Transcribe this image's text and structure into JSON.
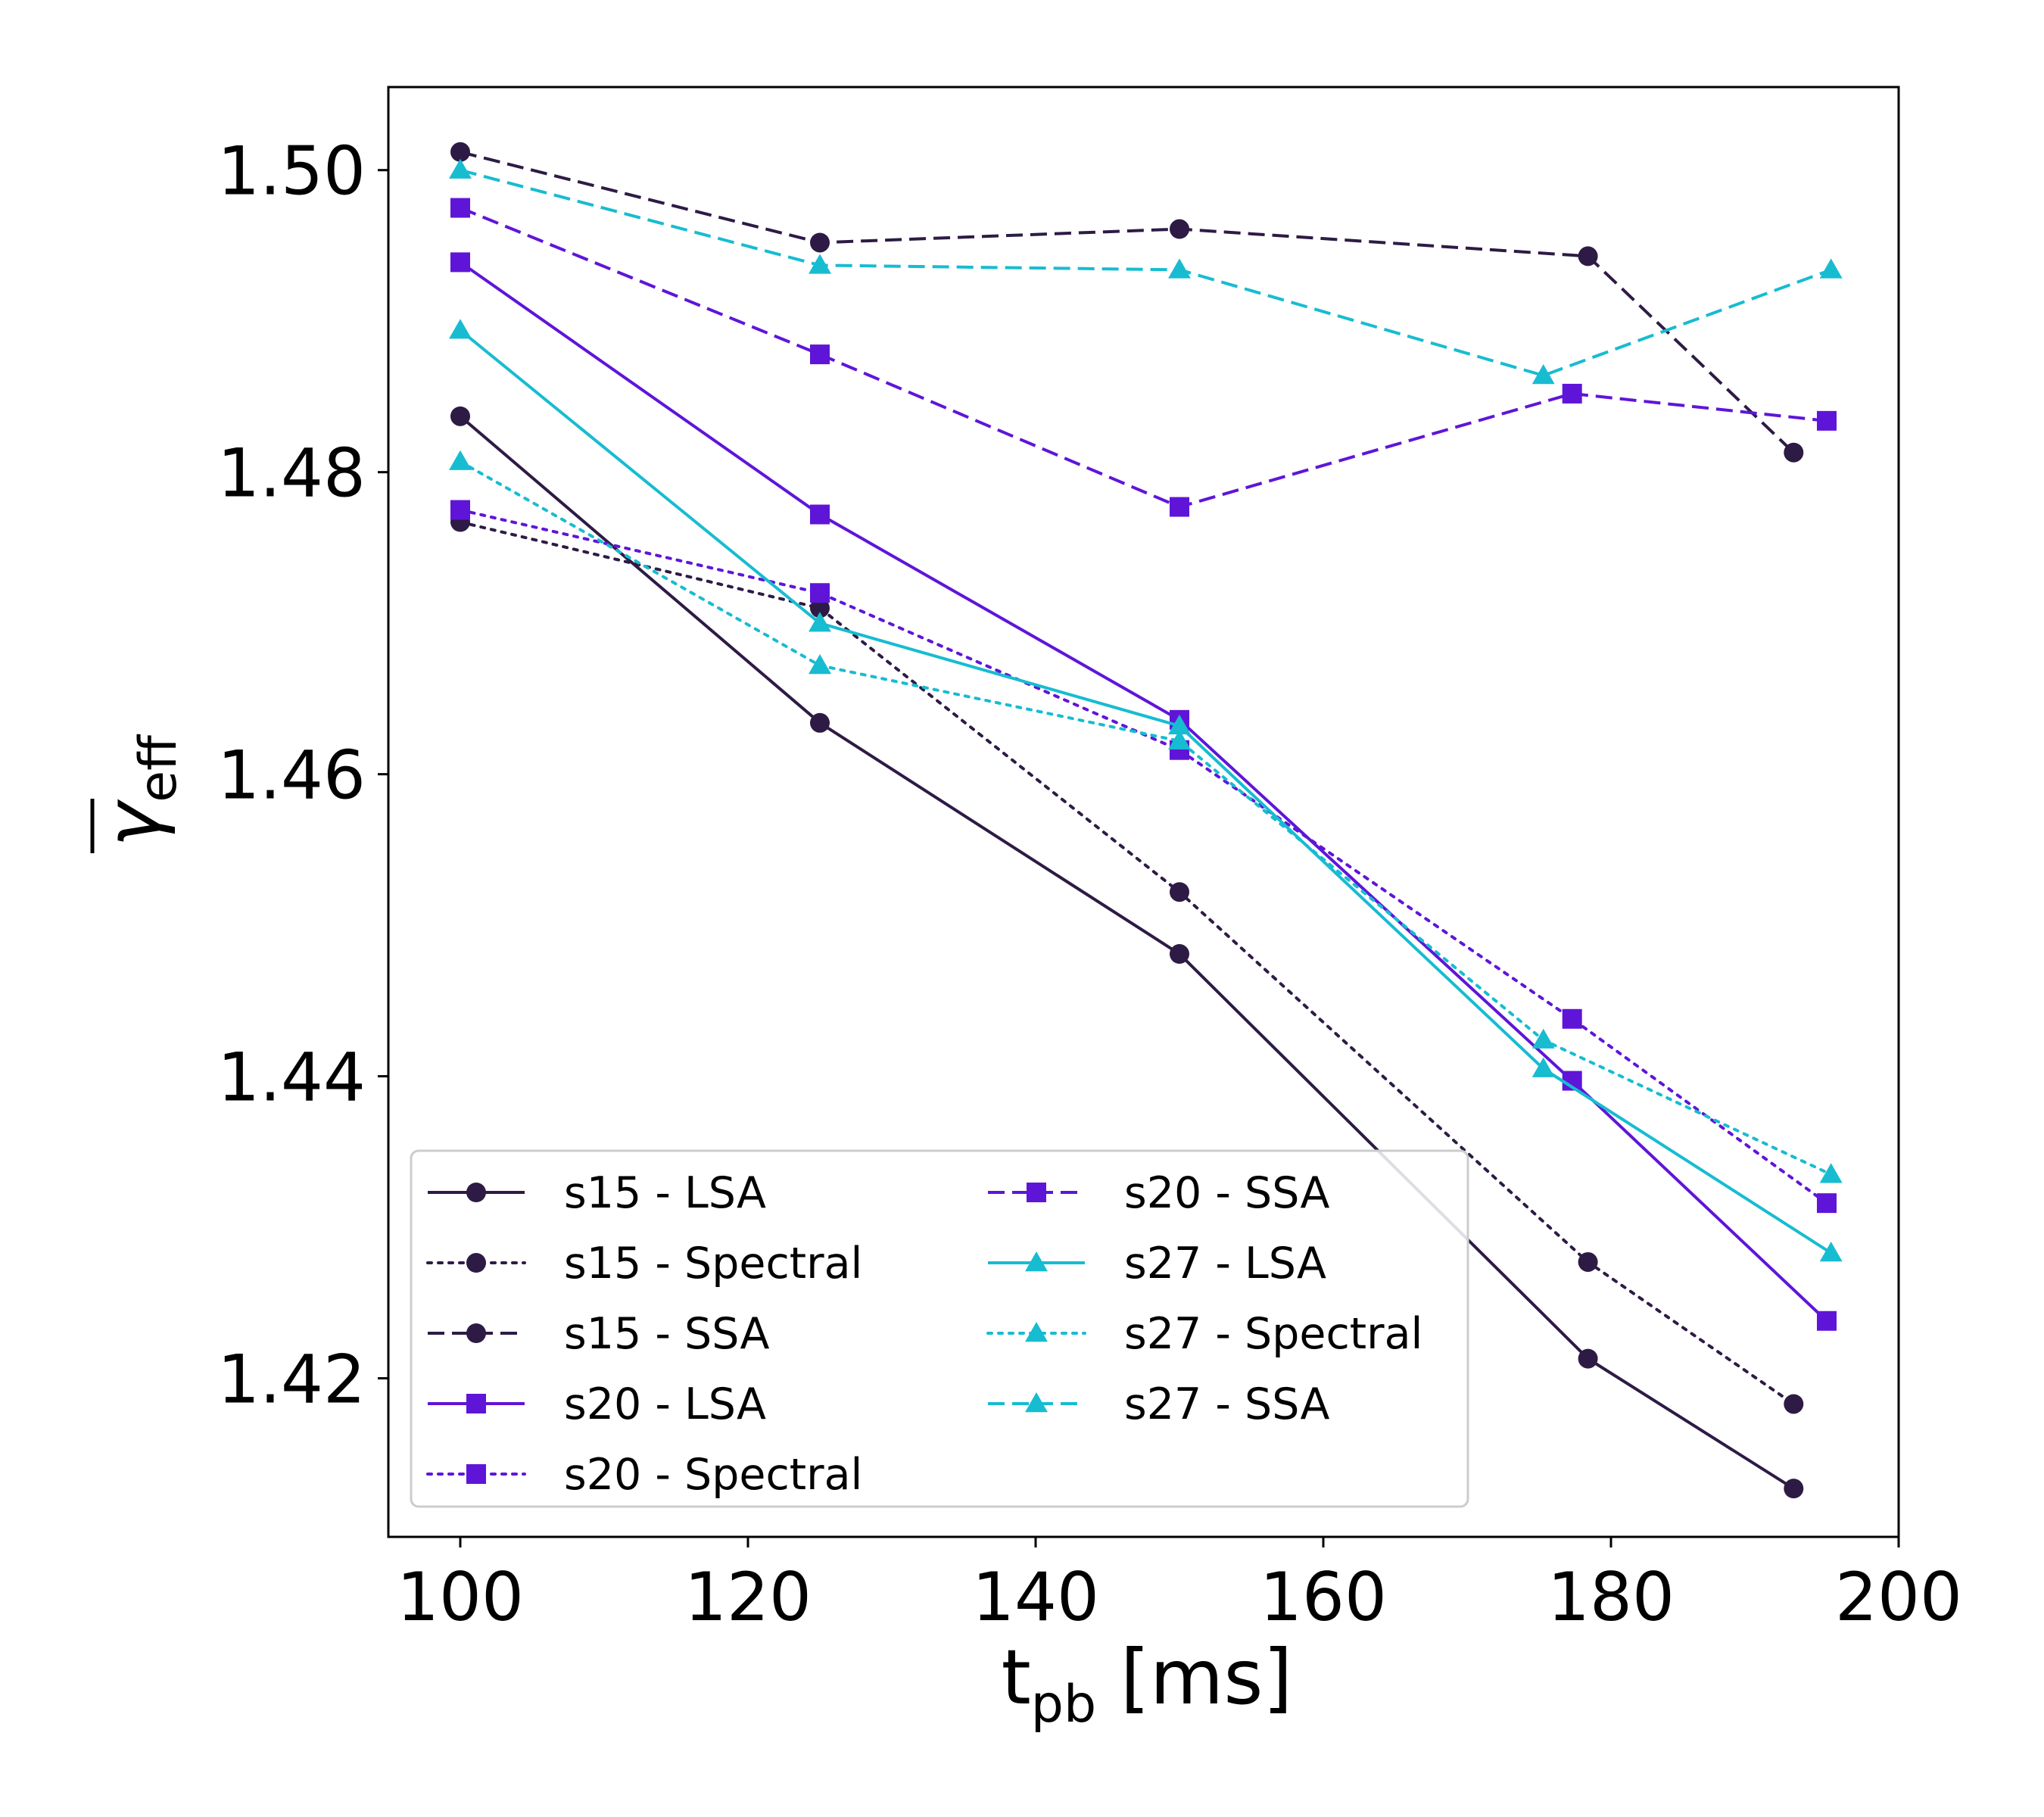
{
  "chart_data": {
    "type": "line",
    "xlabel": "t",
    "xlabel_sub": "pb",
    "xlabel_unit": " [ms]",
    "ylabel": "γ",
    "ylabel_sub": "eff",
    "xlim": [
      95,
      200
    ],
    "ylim": [
      1.4095,
      1.5055
    ],
    "xticks": [
      100,
      120,
      140,
      160,
      180,
      200
    ],
    "xtick_labels": [
      "100",
      "120",
      "140",
      "160",
      "180",
      "200"
    ],
    "yticks": [
      1.42,
      1.44,
      1.46,
      1.48,
      1.5
    ],
    "ytick_labels": [
      "1.42",
      "1.44",
      "1.46",
      "1.48",
      "1.50"
    ],
    "grid": false,
    "legend_placement": "lower-left",
    "series": [
      {
        "name": "s15 - LSA",
        "style": "solid",
        "marker": "circle",
        "color": "#2d1b45",
        "x": [
          100,
          125,
          150,
          178.4,
          192.7
        ],
        "y": [
          1.4837,
          1.4634,
          1.4481,
          1.4213,
          1.4127
        ]
      },
      {
        "name": "s15 - Spectral",
        "style": "dotted",
        "marker": "circle",
        "color": "#2d1b45",
        "x": [
          100,
          125,
          150,
          178.4,
          192.7
        ],
        "y": [
          1.4767,
          1.471,
          1.4522,
          1.4277,
          1.4183
        ]
      },
      {
        "name": "s15 - SSA",
        "style": "dashed",
        "marker": "circle",
        "color": "#2d1b45",
        "x": [
          100,
          125,
          150,
          178.4,
          192.7
        ],
        "y": [
          1.5012,
          1.4952,
          1.4961,
          1.4943,
          1.4813
        ]
      },
      {
        "name": "s20 - LSA",
        "style": "solid",
        "marker": "square",
        "color": "#5f15d8",
        "x": [
          100,
          125,
          150,
          177.3,
          195
        ],
        "y": [
          1.4939,
          1.4772,
          1.4636,
          1.4397,
          1.4238
        ]
      },
      {
        "name": "s20 - Spectral",
        "style": "dotted",
        "marker": "square",
        "color": "#5f15d8",
        "x": [
          100,
          125,
          150,
          177.3,
          195
        ],
        "y": [
          1.4775,
          1.472,
          1.4616,
          1.4438,
          1.4316
        ]
      },
      {
        "name": "s20 - SSA",
        "style": "dashed",
        "marker": "square",
        "color": "#5f15d8",
        "x": [
          100,
          125,
          150,
          177.3,
          195
        ],
        "y": [
          1.4975,
          1.4878,
          1.4777,
          1.4852,
          1.4834
        ]
      },
      {
        "name": "s27 - LSA",
        "style": "solid",
        "marker": "triangle",
        "color": "#17bcd1",
        "x": [
          100,
          125,
          150,
          175.3,
          195.3
        ],
        "y": [
          1.4894,
          1.47,
          1.4632,
          1.4405,
          1.4283
        ]
      },
      {
        "name": "s27 - Spectral",
        "style": "dotted",
        "marker": "triangle",
        "color": "#17bcd1",
        "x": [
          100,
          125,
          150,
          175.3,
          195.3
        ],
        "y": [
          1.4807,
          1.4672,
          1.4622,
          1.4424,
          1.4335
        ]
      },
      {
        "name": "s27 - SSA",
        "style": "dashed",
        "marker": "triangle",
        "color": "#17bcd1",
        "x": [
          100,
          125,
          150,
          175.3,
          195.3
        ],
        "y": [
          1.5,
          1.4937,
          1.4934,
          1.4864,
          1.4934
        ]
      }
    ]
  }
}
